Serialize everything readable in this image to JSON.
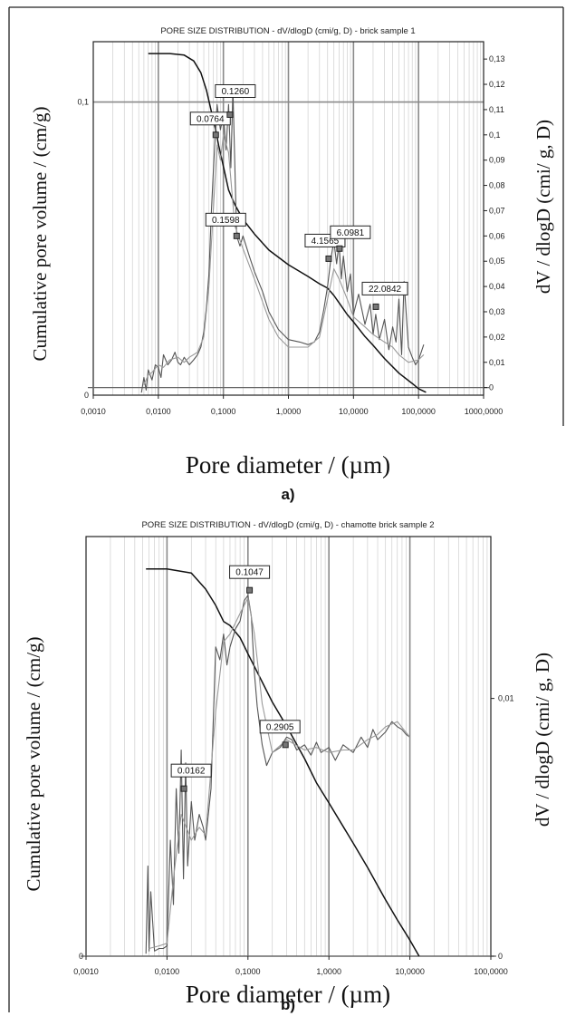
{
  "chart_data": [
    {
      "type": "line",
      "id": "a",
      "title": "PORE SIZE DISTRIBUTION  - dV/dlogD (cmi/g, D) - brick sample 1",
      "xlabel": "Pore diameter / (µm)",
      "ylabel": "Cumulative pore volume / (cm/g)",
      "y2label": "dV / dlogD (cmi/ g, D)",
      "panel_label": "a)",
      "x_scale": "log",
      "xlim": [
        0.001,
        1000
      ],
      "x_ticks": [
        "0,0010",
        "0,0100",
        "0,1000",
        "1,0000",
        "10,0000",
        "100,0000",
        "1000,0000"
      ],
      "ylim": [
        0,
        0.115
      ],
      "y_ticks": [
        {
          "value": 0,
          "label": "0"
        },
        {
          "value": 0.1,
          "label": "0,1"
        }
      ],
      "y2lim": [
        -0.003,
        0.134
      ],
      "y2_ticks": [
        "0",
        "0,01",
        "0,02",
        "0,03",
        "0,04",
        "0,05",
        "0,06",
        "0,07",
        "0,08",
        "0,09",
        "0,1",
        "0,11",
        "0,12",
        "0,13"
      ],
      "grid": true,
      "series": [
        {
          "role": "cumulative",
          "axis": "left",
          "color": "#111111",
          "x": [
            0.007,
            0.015,
            0.025,
            0.035,
            0.045,
            0.055,
            0.065,
            0.075,
            0.085,
            0.1,
            0.12,
            0.15,
            0.2,
            0.3,
            0.5,
            1,
            2,
            3,
            4,
            5,
            6,
            8,
            10,
            15,
            20,
            30,
            50,
            80,
            100,
            130
          ],
          "values": [
            0.1165,
            0.1165,
            0.116,
            0.114,
            0.11,
            0.104,
            0.097,
            0.091,
            0.085,
            0.078,
            0.07,
            0.065,
            0.06,
            0.055,
            0.0495,
            0.0445,
            0.0405,
            0.038,
            0.0365,
            0.034,
            0.0315,
            0.0275,
            0.025,
            0.02,
            0.017,
            0.0125,
            0.0075,
            0.004,
            0.0022,
            0.001
          ]
        },
        {
          "role": "dV/dlogD run 1",
          "axis": "right",
          "color": "#555555",
          "x": [
            0.0055,
            0.006,
            0.0065,
            0.007,
            0.008,
            0.009,
            0.01,
            0.011,
            0.012,
            0.014,
            0.016,
            0.018,
            0.02,
            0.022,
            0.025,
            0.03,
            0.035,
            0.04,
            0.045,
            0.05,
            0.055,
            0.06,
            0.065,
            0.07,
            0.075,
            0.08,
            0.09,
            0.1,
            0.11,
            0.12,
            0.13,
            0.14,
            0.16,
            0.18,
            0.2,
            0.25,
            0.3,
            0.4,
            0.5,
            0.7,
            1,
            1.5,
            2,
            2.5,
            3,
            3.5,
            4,
            4.5,
            5,
            5.5,
            6,
            6.5,
            7,
            8,
            9,
            10,
            12,
            15,
            18,
            20,
            22,
            25,
            30,
            35,
            40,
            45,
            50,
            55,
            60,
            70,
            80,
            90,
            100,
            110,
            120
          ],
          "values": [
            -0.002,
            0.004,
            -0.001,
            0.007,
            0.003,
            0.009,
            0.008,
            0.004,
            0.013,
            0.009,
            0.011,
            0.014,
            0.01,
            0.009,
            0.012,
            0.009,
            0.011,
            0.013,
            0.016,
            0.022,
            0.032,
            0.045,
            0.068,
            0.085,
            0.1,
            0.112,
            0.102,
            0.108,
            0.094,
            0.112,
            0.087,
            0.118,
            0.06,
            0.056,
            0.06,
            0.052,
            0.046,
            0.038,
            0.03,
            0.023,
            0.019,
            0.018,
            0.017,
            0.018,
            0.022,
            0.031,
            0.04,
            0.051,
            0.058,
            0.049,
            0.057,
            0.043,
            0.052,
            0.038,
            0.045,
            0.029,
            0.037,
            0.025,
            0.033,
            0.021,
            0.029,
            0.019,
            0.027,
            0.015,
            0.024,
            0.018,
            0.035,
            0.013,
            0.042,
            0.016,
            0.012,
            0.009,
            0.011,
            0.014,
            0.017
          ]
        },
        {
          "role": "dV/dlogD run 2",
          "axis": "right",
          "color": "#999999",
          "x": [
            0.006,
            0.007,
            0.008,
            0.01,
            0.012,
            0.015,
            0.02,
            0.025,
            0.03,
            0.04,
            0.05,
            0.06,
            0.07,
            0.08,
            0.09,
            0.1,
            0.12,
            0.15,
            0.2,
            0.3,
            0.5,
            0.7,
            1,
            1.5,
            2,
            3,
            4,
            5,
            6,
            8,
            10,
            15,
            20,
            30,
            40,
            50,
            70,
            100,
            120
          ],
          "values": [
            0.001,
            0.005,
            0.006,
            0.009,
            0.008,
            0.011,
            0.012,
            0.01,
            0.012,
            0.014,
            0.02,
            0.04,
            0.07,
            0.096,
            0.09,
            0.1,
            0.093,
            0.064,
            0.055,
            0.043,
            0.027,
            0.02,
            0.016,
            0.016,
            0.016,
            0.02,
            0.035,
            0.047,
            0.043,
            0.035,
            0.028,
            0.024,
            0.021,
            0.018,
            0.016,
            0.013,
            0.01,
            0.011,
            0.013
          ]
        }
      ],
      "annotations": [
        {
          "x": 0.0764,
          "y": 0.1
        },
        {
          "x": 0.126,
          "y": 0.108
        },
        {
          "x": 0.1598,
          "y": 0.06
        },
        {
          "x": 4.1565,
          "y": 0.051
        },
        {
          "x": 6.0981,
          "y": 0.055
        },
        {
          "x": 22.0842,
          "y": 0.032
        }
      ],
      "annotation_labels": [
        "0.0764",
        "0.1260",
        "0.1598",
        "4.1565",
        "6.0981",
        "22.0842"
      ]
    },
    {
      "type": "line",
      "id": "b",
      "title": "PORE SIZE DISTRIBUTION  - dV/dlogD (cmi/g, D) - chamotte brick sample 2",
      "xlabel": "Pore diameter / (µm)",
      "ylabel": "Cumulative pore volume / (cm/g)",
      "y2label": "dV / dlogD (cmi/ g, D)",
      "panel_label": "b)",
      "x_scale": "log",
      "xlim": [
        0.001,
        100
      ],
      "x_ticks": [
        "0,0010",
        "0,0100",
        "0,1000",
        "1,0000",
        "10,0000",
        "100,0000"
      ],
      "ylim": [
        0,
        0.01
      ],
      "y_ticks": [
        {
          "value": 0,
          "label": "0"
        }
      ],
      "y2lim": [
        0,
        0.016
      ],
      "y2_ticks": [
        {
          "value": 0,
          "label": "0"
        },
        {
          "value": 0.01,
          "label": "0,01"
        }
      ],
      "grid": true,
      "series": [
        {
          "role": "cumulative",
          "axis": "left",
          "color": "#111111",
          "x": [
            0.0055,
            0.01,
            0.02,
            0.03,
            0.04,
            0.05,
            0.06,
            0.08,
            0.1,
            0.15,
            0.2,
            0.3,
            0.5,
            0.7,
            1,
            2,
            3,
            5,
            7,
            10,
            13
          ],
          "values": [
            0.0096,
            0.0096,
            0.0095,
            0.0091,
            0.0087,
            0.0083,
            0.0082,
            0.0079,
            0.0075,
            0.0068,
            0.0063,
            0.0057,
            0.0049,
            0.0043,
            0.0038,
            0.0028,
            0.0022,
            0.0014,
            0.0009,
            0.0004,
            0
          ]
        },
        {
          "role": "dV/dlogD run 1",
          "axis": "right",
          "color": "#555555",
          "x": [
            0.0055,
            0.0058,
            0.006,
            0.0063,
            0.007,
            0.008,
            0.009,
            0.01,
            0.011,
            0.012,
            0.013,
            0.014,
            0.015,
            0.016,
            0.017,
            0.018,
            0.02,
            0.022,
            0.025,
            0.028,
            0.03,
            0.035,
            0.04,
            0.045,
            0.05,
            0.055,
            0.06,
            0.07,
            0.08,
            0.09,
            0.1,
            0.11,
            0.12,
            0.13,
            0.15,
            0.17,
            0.2,
            0.25,
            0.3,
            0.35,
            0.4,
            0.5,
            0.6,
            0.7,
            0.8,
            1,
            1.2,
            1.5,
            2,
            2.5,
            3,
            3.5,
            4,
            5,
            6,
            7,
            8,
            9,
            10
          ],
          "values": [
            0.0001,
            0.0035,
            0.0002,
            0.0025,
            0.0002,
            0.0003,
            0.0003,
            0.0004,
            0.0045,
            0.002,
            0.0065,
            0.004,
            0.008,
            0.003,
            0.0075,
            0.0035,
            0.006,
            0.0045,
            0.0055,
            0.005,
            0.0045,
            0.0065,
            0.012,
            0.0115,
            0.0125,
            0.0113,
            0.012,
            0.0127,
            0.013,
            0.0138,
            0.014,
            0.0132,
            0.011,
            0.0097,
            0.0082,
            0.0074,
            0.0079,
            0.0081,
            0.0085,
            0.0084,
            0.008,
            0.0082,
            0.0078,
            0.0083,
            0.0079,
            0.0081,
            0.0076,
            0.0082,
            0.0079,
            0.0085,
            0.0081,
            0.0088,
            0.0084,
            0.0087,
            0.0091,
            0.0089,
            0.0088,
            0.0086,
            0.0085
          ]
        },
        {
          "role": "dV/dlogD run 2",
          "axis": "right",
          "color": "#999999",
          "x": [
            0.006,
            0.008,
            0.01,
            0.012,
            0.015,
            0.02,
            0.025,
            0.03,
            0.04,
            0.05,
            0.06,
            0.08,
            0.1,
            0.12,
            0.15,
            0.2,
            0.3,
            0.5,
            0.7,
            1,
            1.5,
            2,
            3,
            4,
            5,
            7,
            10
          ],
          "values": [
            0.0003,
            0.0004,
            0.0005,
            0.003,
            0.0055,
            0.0045,
            0.005,
            0.0047,
            0.0095,
            0.0122,
            0.0125,
            0.0133,
            0.0139,
            0.0125,
            0.0098,
            0.0079,
            0.0084,
            0.008,
            0.0081,
            0.0079,
            0.008,
            0.008,
            0.0084,
            0.0086,
            0.0089,
            0.0091,
            0.0085
          ]
        }
      ],
      "annotations": [
        {
          "x": 0.0162,
          "y": 0.0065
        },
        {
          "x": 0.1047,
          "y": 0.0142
        },
        {
          "x": 0.2905,
          "y": 0.0082
        }
      ],
      "annotation_labels": [
        "0.0162",
        "0.1047",
        "0.2905"
      ]
    }
  ]
}
